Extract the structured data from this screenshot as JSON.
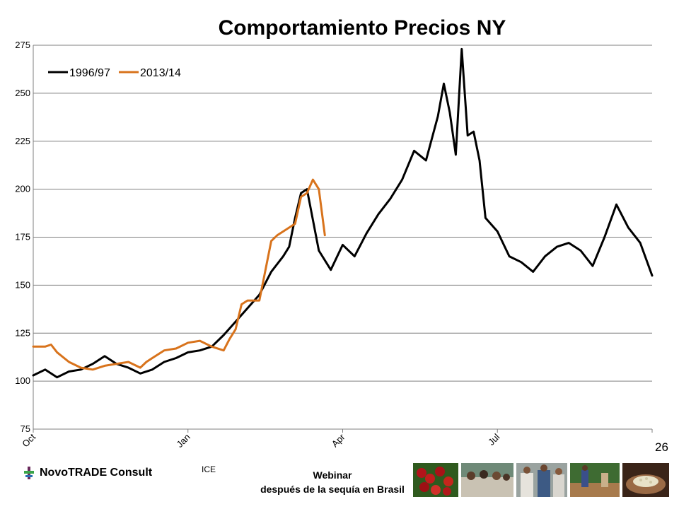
{
  "chart_data": {
    "type": "line",
    "title": "Comportamiento Precios NY",
    "ylim": [
      75,
      275
    ],
    "yticks": [
      75,
      100,
      125,
      150,
      175,
      200,
      225,
      250,
      275
    ],
    "xlim": [
      0,
      52
    ],
    "x_unit": "weeks from Oct",
    "xtick_values": [
      0,
      13,
      26,
      39,
      52
    ],
    "xtick_labels": [
      "Oct",
      "Jan",
      "Apr",
      "Jul",
      ""
    ],
    "grid": "horizontal",
    "legend_position": "top-left",
    "series": [
      {
        "name": "1996/97",
        "color": "#000000",
        "x": [
          0,
          1,
          2,
          3,
          4,
          5,
          6,
          7,
          8,
          9,
          10,
          11,
          12,
          13,
          14,
          15,
          16,
          17,
          18,
          19,
          20,
          21,
          21.5,
          22,
          22.5,
          23,
          24,
          25,
          26,
          27,
          28,
          29,
          30,
          31,
          32,
          33,
          34,
          34.5,
          35,
          35.5,
          36,
          36.5,
          37,
          37.5,
          38,
          39,
          40,
          41,
          42,
          43,
          44,
          45,
          46,
          47,
          48,
          49,
          50,
          51,
          52
        ],
        "y": [
          103,
          106,
          102,
          105,
          106,
          109,
          113,
          109,
          107,
          104,
          106,
          110,
          112,
          115,
          116,
          118,
          124,
          131,
          138,
          145,
          157,
          165,
          170,
          185,
          198,
          200,
          168,
          158,
          171,
          165,
          177,
          187,
          195,
          205,
          220,
          215,
          238,
          255,
          240,
          218,
          273,
          228,
          230,
          215,
          185,
          178,
          165,
          162,
          157,
          165,
          170,
          172,
          168,
          160,
          175,
          192,
          180,
          172,
          155
        ]
      },
      {
        "name": "2013/14",
        "color": "#d8731c",
        "x": [
          0,
          1,
          1.5,
          2,
          3,
          4,
          5,
          6,
          7,
          8,
          9,
          9.5,
          10,
          11,
          12,
          13,
          14,
          15,
          16,
          16.5,
          17,
          17.5,
          18,
          19,
          20,
          20.5,
          21,
          22,
          22.5,
          23,
          23.5,
          24,
          24.5
        ],
        "y": [
          118,
          118,
          119,
          115,
          110,
          107,
          106,
          108,
          109,
          110,
          107,
          110,
          112,
          116,
          117,
          120,
          121,
          118,
          116,
          122,
          127,
          140,
          142,
          142,
          173,
          176,
          178,
          182,
          196,
          198,
          205,
          200,
          176
        ]
      }
    ]
  },
  "page": {
    "number": "26"
  },
  "footer": {
    "logo_text": "NovoTRADE Consult",
    "source": "ICE",
    "webinar_title": "Webinar",
    "webinar_subtitle": "después de la sequía en Brasil"
  }
}
